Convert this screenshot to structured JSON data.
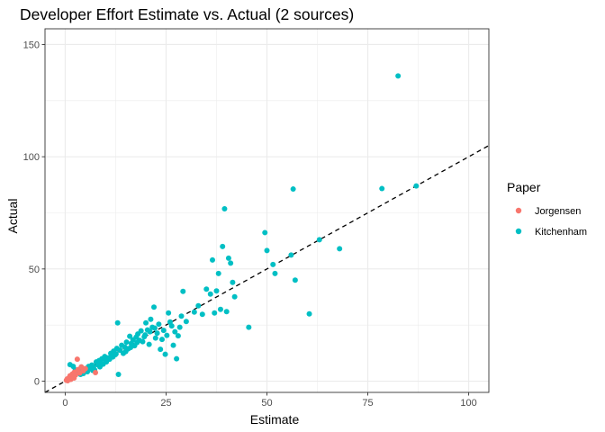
{
  "chart_data": {
    "type": "scatter",
    "title": "Developer Effort Estimate vs. Actual (2 sources)",
    "xlabel": "Estimate",
    "ylabel": "Actual",
    "xlim": [
      -5,
      105
    ],
    "ylim": [
      -5,
      157
    ],
    "x_ticks": [
      0,
      25,
      50,
      75,
      100
    ],
    "y_ticks": [
      0,
      50,
      100,
      150
    ],
    "grid": true,
    "legend_position": "right",
    "reference_line": {
      "type": "y=x",
      "style": "dashed",
      "color": "#000000"
    },
    "legend": {
      "title": "Paper",
      "entries": [
        {
          "name": "Jorgensen",
          "color": "#F8766D"
        },
        {
          "name": "Kitchenham",
          "color": "#00BFC4"
        }
      ]
    },
    "series": [
      {
        "name": "Jorgensen",
        "color": "#F8766D",
        "points": [
          [
            0.3,
            0.4
          ],
          [
            0.5,
            1.0
          ],
          [
            0.8,
            0.6
          ],
          [
            1.0,
            1.6
          ],
          [
            1.2,
            2.4
          ],
          [
            1.5,
            1.2
          ],
          [
            1.8,
            3.2
          ],
          [
            2.0,
            2.0
          ],
          [
            2.3,
            4.0
          ],
          [
            2.6,
            2.8
          ],
          [
            3.0,
            9.8
          ],
          [
            3.2,
            5.2
          ],
          [
            3.6,
            3.6
          ],
          [
            4.0,
            6.4
          ],
          [
            4.5,
            4.6
          ],
          [
            5.0,
            5.6
          ],
          [
            7.5,
            3.8
          ],
          [
            0.6,
            0.2
          ],
          [
            1.4,
            0.8
          ],
          [
            2.2,
            1.4
          ]
        ]
      },
      {
        "name": "Kitchenham",
        "color": "#00BFC4",
        "points": [
          [
            1.2,
            7.4
          ],
          [
            2.0,
            6.6
          ],
          [
            2.5,
            5.0
          ],
          [
            3.0,
            3.6
          ],
          [
            3.5,
            4.2
          ],
          [
            4.0,
            4.8
          ],
          [
            4.5,
            3.4
          ],
          [
            5.0,
            5.6
          ],
          [
            5.5,
            4.2
          ],
          [
            5.8,
            6.6
          ],
          [
            6.2,
            5.8
          ],
          [
            6.6,
            7.2
          ],
          [
            7.0,
            6.2
          ],
          [
            7.3,
            5.0
          ],
          [
            7.7,
            8.6
          ],
          [
            8.0,
            7.4
          ],
          [
            8.4,
            9.2
          ],
          [
            8.8,
            8.0
          ],
          [
            9.1,
            10.0
          ],
          [
            9.4,
            7.6
          ],
          [
            9.8,
            11.0
          ],
          [
            10.2,
            8.6
          ],
          [
            10.6,
            10.4
          ],
          [
            11.0,
            9.8
          ],
          [
            11.3,
            12.4
          ],
          [
            11.6,
            11.2
          ],
          [
            12.0,
            13.4
          ],
          [
            12.4,
            11.8
          ],
          [
            12.8,
            14.6
          ],
          [
            13.0,
            26.0
          ],
          [
            13.2,
            3.0
          ],
          [
            13.6,
            13.8
          ],
          [
            14.0,
            16.0
          ],
          [
            14.4,
            12.4
          ],
          [
            14.8,
            15.2
          ],
          [
            15.2,
            17.4
          ],
          [
            15.6,
            14.4
          ],
          [
            16.0,
            20.0
          ],
          [
            16.4,
            16.8
          ],
          [
            16.8,
            18.4
          ],
          [
            17.2,
            15.8
          ],
          [
            17.6,
            19.6
          ],
          [
            18.0,
            21.0
          ],
          [
            18.4,
            18.2
          ],
          [
            18.8,
            22.4
          ],
          [
            19.2,
            17.6
          ],
          [
            19.6,
            19.8
          ],
          [
            20.0,
            26.0
          ],
          [
            20.4,
            22.8
          ],
          [
            20.8,
            16.4
          ],
          [
            21.2,
            27.6
          ],
          [
            21.6,
            24.0
          ],
          [
            22.0,
            33.0
          ],
          [
            22.4,
            19.2
          ],
          [
            22.8,
            21.4
          ],
          [
            23.2,
            25.4
          ],
          [
            23.6,
            14.2
          ],
          [
            24.0,
            18.6
          ],
          [
            24.4,
            22.6
          ],
          [
            24.8,
            12.0
          ],
          [
            25.2,
            20.4
          ],
          [
            25.6,
            30.4
          ],
          [
            26.0,
            26.4
          ],
          [
            26.4,
            24.6
          ],
          [
            26.8,
            16.0
          ],
          [
            27.2,
            22.0
          ],
          [
            27.6,
            10.0
          ],
          [
            28.0,
            20.2
          ],
          [
            28.4,
            24.0
          ],
          [
            28.8,
            29.0
          ],
          [
            29.2,
            40.0
          ],
          [
            30.0,
            26.6
          ],
          [
            32.0,
            30.8
          ],
          [
            33.0,
            33.6
          ],
          [
            34.0,
            29.8
          ],
          [
            35.0,
            41.0
          ],
          [
            36.0,
            38.8
          ],
          [
            36.5,
            54.0
          ],
          [
            37.0,
            30.4
          ],
          [
            37.5,
            40.2
          ],
          [
            38.0,
            48.0
          ],
          [
            38.5,
            32.0
          ],
          [
            39.0,
            60.0
          ],
          [
            39.5,
            76.8
          ],
          [
            40.0,
            31.0
          ],
          [
            40.5,
            54.8
          ],
          [
            41.0,
            52.6
          ],
          [
            41.5,
            44.0
          ],
          [
            42.0,
            37.6
          ],
          [
            45.5,
            24.0
          ],
          [
            49.5,
            66.2
          ],
          [
            50.0,
            58.2
          ],
          [
            51.5,
            52.0
          ],
          [
            52.0,
            48.0
          ],
          [
            56.0,
            56.2
          ],
          [
            56.5,
            85.6
          ],
          [
            57.0,
            45.0
          ],
          [
            60.5,
            30.0
          ],
          [
            63.0,
            63.0
          ],
          [
            68.0,
            59.0
          ],
          [
            78.5,
            85.8
          ],
          [
            82.5,
            136.0
          ],
          [
            87.0,
            87.0
          ],
          [
            3.8,
            3.0
          ],
          [
            6.8,
            4.8
          ],
          [
            8.6,
            6.4
          ],
          [
            10.0,
            9.0
          ],
          [
            11.8,
            10.8
          ],
          [
            12.6,
            12.2
          ],
          [
            15.0,
            13.2
          ],
          [
            16.2,
            15.0
          ],
          [
            17.8,
            17.2
          ],
          [
            19.8,
            20.6
          ],
          [
            21.0,
            22.0
          ],
          [
            22.2,
            23.6
          ]
        ]
      }
    ]
  }
}
